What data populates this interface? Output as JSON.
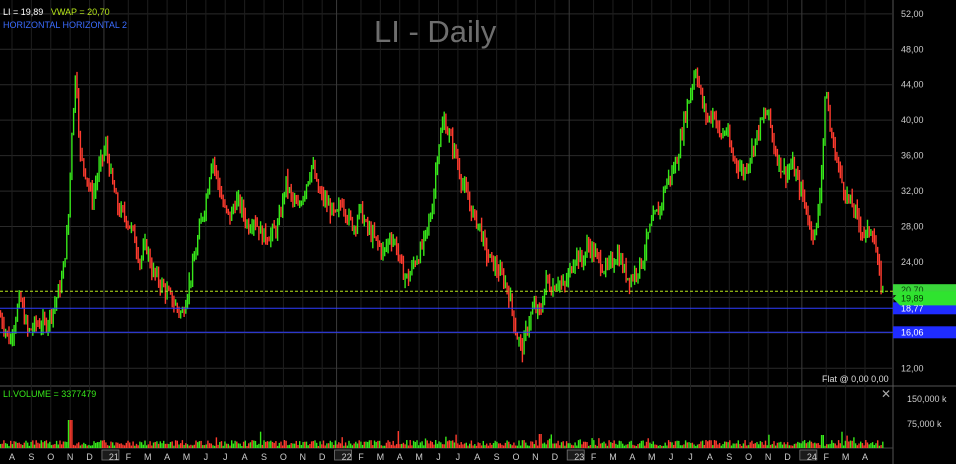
{
  "title": "LI - Daily",
  "legend": {
    "price_label": "LI = 19,89",
    "vwap_label": "VWAP = 20,70",
    "h1_label": "HORIZONTAL",
    "h2_label": "HORIZONTAL 2",
    "volume_label": "LI.VOLUME = 3377479"
  },
  "flat_text": "Flat @ 0,00   0,00",
  "colors": {
    "background": "#000000",
    "up": "#37e81a",
    "down": "#ff3b2e",
    "vwap": "#b7e81a",
    "horizontal": "#2e3cff",
    "grid": "#2a2a2a",
    "axis_text": "#cccccc"
  },
  "chart_data": {
    "type": "candlestick",
    "title": "LI - Daily",
    "y_axis": {
      "range": [
        10,
        53
      ],
      "ticks": [
        "12,00",
        "16,00",
        "20,00",
        "24,00",
        "28,00",
        "32,00",
        "36,00",
        "40,00",
        "44,00",
        "48,00",
        "52,00"
      ],
      "tick_values": [
        12,
        16,
        20,
        24,
        28,
        32,
        36,
        40,
        44,
        48,
        52
      ],
      "grid": true,
      "side": "right"
    },
    "x_axis": {
      "tick_labels": [
        "A",
        "S",
        "O",
        "N",
        "D",
        "21",
        "F",
        "M",
        "A",
        "M",
        "J",
        "J",
        "A",
        "S",
        "O",
        "N",
        "D",
        "22",
        "F",
        "M",
        "A",
        "M",
        "J",
        "J",
        "A",
        "S",
        "O",
        "N",
        "D",
        "23",
        "F",
        "M",
        "A",
        "M",
        "J",
        "J",
        "A",
        "S",
        "O",
        "N",
        "D",
        "24",
        "F",
        "M",
        "A"
      ],
      "year_markers": [
        "21",
        "22",
        "23",
        "24"
      ]
    },
    "price_series": {
      "name": "LI",
      "approx_close_path": [
        [
          0,
          18
        ],
        [
          10,
          15
        ],
        [
          20,
          20
        ],
        [
          28,
          16
        ],
        [
          36,
          17
        ],
        [
          46,
          17
        ],
        [
          54,
          19
        ],
        [
          62,
          22
        ],
        [
          68,
          28
        ],
        [
          72,
          39
        ],
        [
          76,
          46
        ],
        [
          80,
          36
        ],
        [
          86,
          34
        ],
        [
          92,
          31
        ],
        [
          100,
          35
        ],
        [
          106,
          37
        ],
        [
          112,
          33
        ],
        [
          118,
          30
        ],
        [
          126,
          29
        ],
        [
          134,
          27
        ],
        [
          140,
          24
        ],
        [
          146,
          26
        ],
        [
          152,
          23
        ],
        [
          158,
          22
        ],
        [
          164,
          21
        ],
        [
          170,
          20
        ],
        [
          176,
          19
        ],
        [
          182,
          18
        ],
        [
          188,
          21
        ],
        [
          194,
          24
        ],
        [
          200,
          28
        ],
        [
          206,
          31
        ],
        [
          212,
          36
        ],
        [
          218,
          33
        ],
        [
          224,
          30
        ],
        [
          230,
          29
        ],
        [
          236,
          31
        ],
        [
          242,
          30
        ],
        [
          248,
          28
        ],
        [
          254,
          29
        ],
        [
          262,
          27
        ],
        [
          270,
          27
        ],
        [
          278,
          28
        ],
        [
          286,
          33
        ],
        [
          292,
          31
        ],
        [
          298,
          30
        ],
        [
          304,
          32
        ],
        [
          312,
          35
        ],
        [
          318,
          32
        ],
        [
          324,
          31
        ],
        [
          330,
          30
        ],
        [
          336,
          29
        ],
        [
          342,
          31
        ],
        [
          348,
          29
        ],
        [
          354,
          28
        ],
        [
          360,
          30
        ],
        [
          366,
          28
        ],
        [
          372,
          27
        ],
        [
          378,
          26
        ],
        [
          384,
          25
        ],
        [
          390,
          27
        ],
        [
          396,
          26
        ],
        [
          402,
          23
        ],
        [
          408,
          22
        ],
        [
          414,
          24
        ],
        [
          420,
          25
        ],
        [
          426,
          27
        ],
        [
          432,
          30
        ],
        [
          438,
          37
        ],
        [
          444,
          40
        ],
        [
          450,
          38
        ],
        [
          456,
          36
        ],
        [
          462,
          33
        ],
        [
          468,
          31
        ],
        [
          474,
          29
        ],
        [
          480,
          28
        ],
        [
          486,
          25
        ],
        [
          492,
          24
        ],
        [
          498,
          23
        ],
        [
          504,
          22
        ],
        [
          510,
          20
        ],
        [
          516,
          16
        ],
        [
          522,
          14
        ],
        [
          528,
          17
        ],
        [
          534,
          19
        ],
        [
          540,
          18
        ],
        [
          546,
          22
        ],
        [
          552,
          21
        ],
        [
          558,
          22
        ],
        [
          564,
          21
        ],
        [
          570,
          23
        ],
        [
          576,
          25
        ],
        [
          582,
          24
        ],
        [
          588,
          26
        ],
        [
          594,
          25
        ],
        [
          600,
          24
        ],
        [
          606,
          23
        ],
        [
          612,
          24
        ],
        [
          618,
          25
        ],
        [
          624,
          23
        ],
        [
          630,
          22
        ],
        [
          636,
          23
        ],
        [
          642,
          24
        ],
        [
          648,
          27
        ],
        [
          654,
          29
        ],
        [
          660,
          30
        ],
        [
          666,
          33
        ],
        [
          672,
          34
        ],
        [
          678,
          36
        ],
        [
          684,
          40
        ],
        [
          690,
          43
        ],
        [
          696,
          46
        ],
        [
          702,
          42
        ],
        [
          708,
          40
        ],
        [
          714,
          41
        ],
        [
          720,
          38
        ],
        [
          726,
          39
        ],
        [
          732,
          36
        ],
        [
          738,
          35
        ],
        [
          744,
          34
        ],
        [
          750,
          36
        ],
        [
          756,
          38
        ],
        [
          762,
          40
        ],
        [
          768,
          41
        ],
        [
          774,
          37
        ],
        [
          780,
          35
        ],
        [
          786,
          34
        ],
        [
          792,
          35
        ],
        [
          798,
          33
        ],
        [
          804,
          31
        ],
        [
          810,
          28
        ],
        [
          816,
          27
        ],
        [
          822,
          35
        ],
        [
          826,
          44
        ],
        [
          830,
          39
        ],
        [
          836,
          36
        ],
        [
          842,
          33
        ],
        [
          848,
          31
        ],
        [
          854,
          30
        ],
        [
          860,
          28
        ],
        [
          866,
          27
        ],
        [
          872,
          28
        ],
        [
          876,
          25
        ],
        [
          880,
          22
        ],
        [
          884,
          20
        ]
      ],
      "last": 19.89
    },
    "lines": [
      {
        "name": "VWAP",
        "value": 20.7,
        "label": "20,70"
      },
      {
        "name": "HORIZONTAL",
        "value": 18.77,
        "label": "18,77"
      },
      {
        "name": "HORIZONTAL 2",
        "value": 16.06,
        "label": "16,06"
      }
    ],
    "price_badge": {
      "value": 19.89,
      "label": "19,89"
    },
    "volume_axis": {
      "ticks": [
        "150,000 k",
        "75,000 k"
      ],
      "tick_values": [
        150000,
        75000
      ],
      "last": 3377479
    }
  }
}
